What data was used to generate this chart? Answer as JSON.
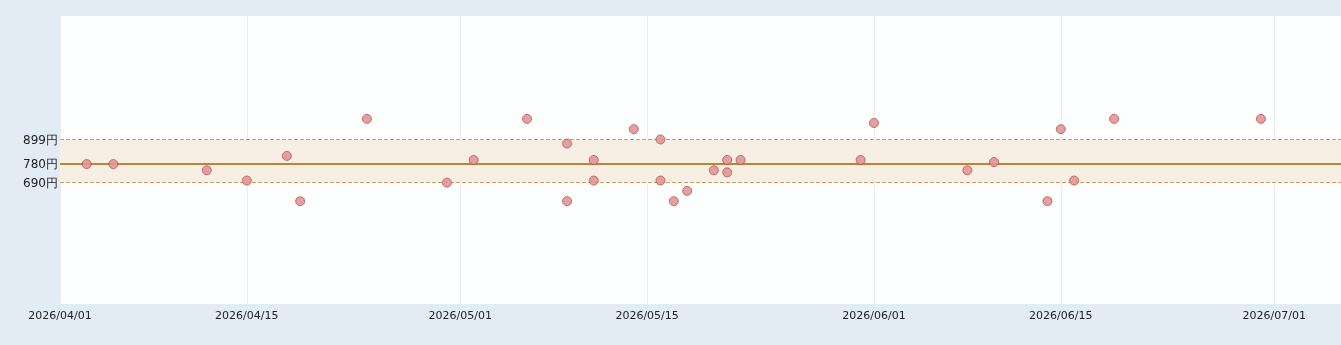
{
  "chart_data": {
    "type": "scatter",
    "x": [
      "2026-04-03",
      "2026-04-05",
      "2026-04-12",
      "2026-04-15",
      "2026-04-18",
      "2026-04-19",
      "2026-04-24",
      "2026-04-30",
      "2026-05-02",
      "2026-05-06",
      "2026-05-09",
      "2026-05-09",
      "2026-05-11",
      "2026-05-11",
      "2026-05-14",
      "2026-05-16",
      "2026-05-16",
      "2026-05-17",
      "2026-05-18",
      "2026-05-20",
      "2026-05-21",
      "2026-05-21",
      "2026-05-22",
      "2026-05-31",
      "2026-06-01",
      "2026-06-08",
      "2026-06-10",
      "2026-06-14",
      "2026-06-15",
      "2026-06-16",
      "2026-06-19",
      "2026-06-30"
    ],
    "series": [
      {
        "color": "#e39595",
        "values": [
          780,
          780,
          750,
          700,
          820,
          600,
          1000,
          690,
          800,
          1000,
          880,
          600,
          800,
          700,
          950,
          900,
          700,
          600,
          650,
          750,
          800,
          740,
          800,
          800,
          980,
          750,
          790,
          600,
          950,
          700,
          1000,
          1000
        ]
      }
    ],
    "xlim": [
      "2026-04-01",
      "2026-07-06"
    ],
    "xticks": [
      {
        "value": "2026-04-01",
        "label": "2026/04/01"
      },
      {
        "value": "2026-04-15",
        "label": "2026/04/15"
      },
      {
        "value": "2026-05-01",
        "label": "2026/05/01"
      },
      {
        "value": "2026-05-15",
        "label": "2026/05/15"
      },
      {
        "value": "2026-06-01",
        "label": "2026/06/01"
      },
      {
        "value": "2026-06-15",
        "label": "2026/06/15"
      },
      {
        "value": "2026-07-01",
        "label": "2026/07/01"
      }
    ],
    "ylim": [
      100,
      1500
    ],
    "yticks": [
      {
        "value": 690,
        "label": "690円"
      },
      {
        "value": 780,
        "label": "780円"
      },
      {
        "value": 899,
        "label": "899円"
      }
    ],
    "ref_lines": [
      {
        "axis": "y",
        "value": 899,
        "color": "#c9a068",
        "line_style": "dashed"
      },
      {
        "axis": "y",
        "value": 780,
        "color": "#b8863b",
        "line_style": "solid"
      },
      {
        "axis": "y",
        "value": 690,
        "color": "#c9a068",
        "line_style": "dashed"
      }
    ],
    "bands": [
      {
        "axis": "y",
        "from": 690,
        "to": 899,
        "color": "#f8efe4"
      }
    ],
    "grid": "x",
    "marker": "circle"
  }
}
